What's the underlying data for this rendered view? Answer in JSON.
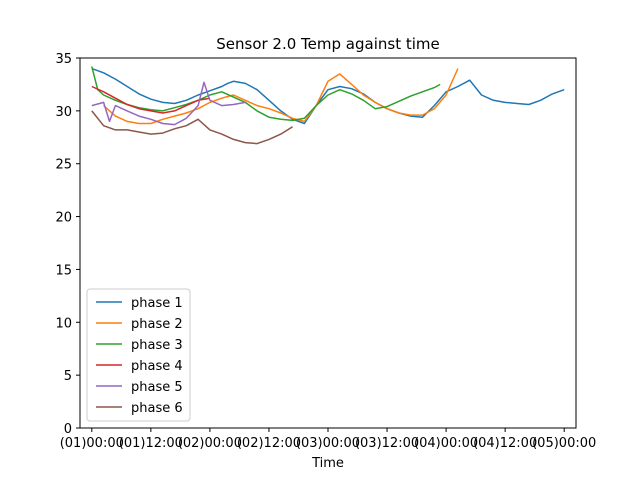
{
  "chart_data": {
    "type": "line",
    "title": "Sensor 2.0 Temp against  time",
    "xlabel": "Time",
    "ylabel": "",
    "xlim": [
      -0.1,
      4.1
    ],
    "ylim": [
      0,
      35
    ],
    "x_unit": "days",
    "xticks": [
      0,
      0.5,
      1,
      1.5,
      2,
      2.5,
      3,
      3.5,
      4
    ],
    "xtick_labels": [
      "(01)00:00",
      "(01)12:00",
      "(02)00:00",
      "(02)12:00",
      "(03)00:00",
      "(03)12:00",
      "(04)00:00",
      "(04)12:00",
      "(05)00:00"
    ],
    "yticks": [
      0,
      5,
      10,
      15,
      20,
      25,
      30,
      35
    ],
    "grid": false,
    "legend_position": "lower-left",
    "series": [
      {
        "name": "phase 1",
        "color": "#1f77b4",
        "x": [
          0,
          0.1,
          0.2,
          0.3,
          0.4,
          0.5,
          0.6,
          0.7,
          0.8,
          0.9,
          1.0,
          1.1,
          1.15,
          1.2,
          1.3,
          1.4,
          1.5,
          1.6,
          1.7,
          1.8,
          1.9,
          2.0,
          2.1,
          2.2,
          2.3,
          2.4,
          2.5,
          2.6,
          2.7,
          2.8,
          2.9,
          3.0,
          3.1,
          3.2,
          3.3,
          3.4,
          3.5,
          3.6,
          3.7,
          3.8,
          3.9,
          4.0
        ],
        "y": [
          34,
          33.6,
          33.0,
          32.3,
          31.6,
          31.1,
          30.8,
          30.7,
          31.0,
          31.5,
          31.9,
          32.3,
          32.6,
          32.8,
          32.6,
          32.0,
          31.0,
          30.0,
          29.2,
          28.8,
          30.5,
          32.0,
          32.3,
          32.1,
          31.6,
          30.8,
          30.2,
          29.8,
          29.5,
          29.4,
          30.5,
          31.8,
          32.3,
          32.9,
          31.5,
          31.0,
          30.8,
          30.7,
          30.6,
          31.0,
          31.6,
          32.0
        ]
      },
      {
        "name": "phase 2",
        "color": "#ff7f0e",
        "x": [
          0.1,
          0.2,
          0.3,
          0.4,
          0.5,
          0.6,
          0.7,
          0.8,
          0.9,
          1.0,
          1.1,
          1.2,
          1.3,
          1.4,
          1.5,
          1.6,
          1.7,
          1.8,
          1.9,
          2.0,
          2.1,
          2.2,
          2.3,
          2.4,
          2.5,
          2.6,
          2.7,
          2.8,
          2.9,
          3.0,
          3.1
        ],
        "y": [
          30.5,
          29.5,
          29.0,
          28.8,
          28.8,
          29.2,
          29.5,
          29.8,
          30.2,
          30.8,
          31.2,
          31.5,
          31.0,
          30.5,
          30.2,
          29.8,
          29.3,
          29.0,
          30.5,
          32.8,
          33.5,
          32.5,
          31.5,
          30.8,
          30.2,
          29.8,
          29.6,
          29.6,
          30.2,
          31.5,
          34.0
        ]
      },
      {
        "name": "phase 3",
        "color": "#2ca02c",
        "x": [
          0,
          0.05,
          0.1,
          0.2,
          0.3,
          0.4,
          0.5,
          0.6,
          0.7,
          0.8,
          0.9,
          1.0,
          1.1,
          1.2,
          1.3,
          1.4,
          1.5,
          1.6,
          1.7,
          1.8,
          1.9,
          2.0,
          2.1,
          2.2,
          2.3,
          2.4,
          2.5,
          2.6,
          2.7,
          2.8,
          2.9,
          2.95
        ],
        "y": [
          34.2,
          32.0,
          31.5,
          31.0,
          30.6,
          30.3,
          30.1,
          30.0,
          30.3,
          30.6,
          31.0,
          31.5,
          31.8,
          31.3,
          30.8,
          30.0,
          29.4,
          29.2,
          29.1,
          29.3,
          30.5,
          31.5,
          32.0,
          31.6,
          31.0,
          30.2,
          30.4,
          30.9,
          31.4,
          31.8,
          32.2,
          32.5
        ]
      },
      {
        "name": "phase 4",
        "color": "#d62728",
        "x": [
          0,
          0.1,
          0.2,
          0.3,
          0.4,
          0.5,
          0.6,
          0.7,
          0.8,
          0.9,
          1.0
        ],
        "y": [
          32.3,
          31.8,
          31.2,
          30.6,
          30.2,
          30.0,
          29.8,
          30.0,
          30.5,
          31.0,
          31.2
        ]
      },
      {
        "name": "phase 5",
        "color": "#9467bd",
        "x": [
          0,
          0.1,
          0.15,
          0.2,
          0.3,
          0.4,
          0.5,
          0.6,
          0.7,
          0.8,
          0.9,
          0.95,
          1.0,
          1.1,
          1.2,
          1.3
        ],
        "y": [
          30.5,
          30.8,
          29.0,
          30.5,
          30.0,
          29.5,
          29.2,
          28.8,
          28.7,
          29.3,
          30.5,
          32.7,
          31.0,
          30.5,
          30.6,
          30.8
        ]
      },
      {
        "name": "phase 6",
        "color": "#8c564b",
        "x": [
          0,
          0.1,
          0.2,
          0.3,
          0.4,
          0.5,
          0.6,
          0.7,
          0.8,
          0.9,
          1.0,
          1.1,
          1.2,
          1.3,
          1.4,
          1.5,
          1.6,
          1.7
        ],
        "y": [
          30.0,
          28.6,
          28.2,
          28.2,
          28.0,
          27.8,
          27.9,
          28.3,
          28.6,
          29.2,
          28.2,
          27.8,
          27.3,
          27.0,
          26.9,
          27.3,
          27.8,
          28.5
        ]
      }
    ]
  }
}
